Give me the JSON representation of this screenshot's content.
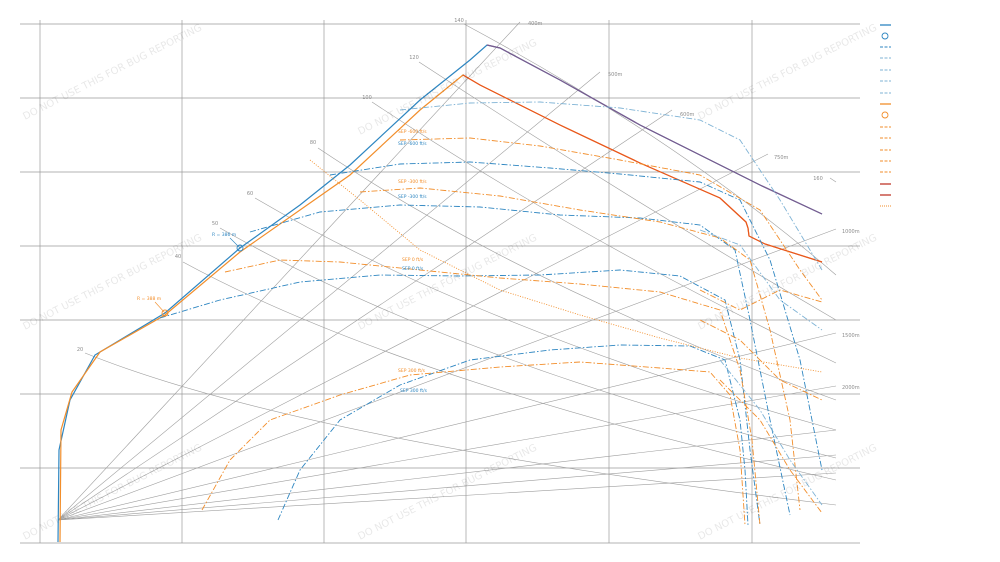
{
  "chart_data": {
    "type": "line",
    "title": "",
    "xlabel": "",
    "ylabel": "",
    "grid": true,
    "legend_position": "right",
    "watermark": "DO NOT USE THIS FOR BUG REPORTING",
    "colors": {
      "blue": "#2e86c1",
      "light_blue": "#7fb3d5",
      "orange": "#f28e2b",
      "dark_orange": "#e8561f",
      "purple": "#7d5a8c",
      "red": "#c0392b",
      "speed_lines": "#9e9e9e",
      "grid": "#9a9a9a"
    },
    "speed_labels": [
      "20",
      "40",
      "50",
      "60",
      "80",
      "100",
      "120",
      "140",
      "160"
    ],
    "range_labels": [
      "400m",
      "500m",
      "600m",
      "750m",
      "1000m",
      "1500m",
      "2000m"
    ],
    "markers": [
      {
        "label": "R = 386 m",
        "color": "#2e86c1"
      },
      {
        "label": "R = 388 m",
        "color": "#f28e2b"
      }
    ],
    "sep_labels": [
      {
        "text": "SEP -600 ft/s",
        "color": "#f28e2b"
      },
      {
        "text": "SEP -600 ft/s",
        "color": "#2e86c1"
      },
      {
        "text": "SEP -300 ft/s",
        "color": "#f28e2b"
      },
      {
        "text": "SEP -300 ft/s",
        "color": "#2e86c1"
      },
      {
        "text": "SEP 0 ft/s",
        "color": "#f28e2b"
      },
      {
        "text": "SEP 0 ft/s",
        "color": "#2e86c1"
      },
      {
        "text": "SEP 300 ft/s",
        "color": "#f28e2b"
      },
      {
        "text": "SEP 300 ft/s",
        "color": "#2e86c1"
      }
    ],
    "series": [
      {
        "color": "#2e86c1",
        "style": "solid",
        "points": [
          [
            58,
            542
          ],
          [
            59,
            450
          ],
          [
            70,
            400
          ],
          [
            95,
            355
          ],
          [
            165,
            313
          ],
          [
            240,
            248
          ],
          [
            300,
            205
          ],
          [
            350,
            165
          ],
          [
            420,
            100
          ],
          [
            470,
            60
          ],
          [
            487,
            45
          ],
          [
            500,
            48
          ],
          [
            560,
            80
          ],
          [
            640,
            125
          ],
          [
            700,
            155
          ],
          [
            760,
            185
          ],
          [
            822,
            214
          ]
        ]
      },
      {
        "color": "#7d5a8c",
        "style": "solid",
        "points": [
          [
            487,
            45
          ],
          [
            500,
            48
          ],
          [
            560,
            80
          ],
          [
            640,
            125
          ],
          [
            700,
            155
          ],
          [
            760,
            185
          ],
          [
            822,
            214
          ]
        ]
      },
      {
        "color": "#f28e2b",
        "style": "solid",
        "points": [
          [
            60,
            542
          ],
          [
            61,
            430
          ],
          [
            72,
            392
          ],
          [
            100,
            352
          ],
          [
            165,
            315
          ],
          [
            240,
            252
          ],
          [
            300,
            210
          ],
          [
            350,
            175
          ],
          [
            420,
            110
          ],
          [
            463,
            75
          ],
          [
            480,
            85
          ],
          [
            560,
            125
          ],
          [
            640,
            163
          ],
          [
            720,
            198
          ],
          [
            746,
            222
          ],
          [
            748,
            228
          ],
          [
            749,
            236
          ],
          [
            765,
            244
          ],
          [
            822,
            262
          ]
        ]
      },
      {
        "color": "#e8561f",
        "style": "solid",
        "points": [
          [
            463,
            75
          ],
          [
            480,
            85
          ],
          [
            560,
            125
          ],
          [
            640,
            163
          ],
          [
            720,
            198
          ],
          [
            746,
            222
          ],
          [
            748,
            228
          ],
          [
            749,
            236
          ],
          [
            765,
            244
          ],
          [
            822,
            262
          ]
        ]
      },
      {
        "color": "#2e86c1",
        "style": "dashdot",
        "points": [
          [
            278,
            520
          ],
          [
            300,
            470
          ],
          [
            340,
            420
          ],
          [
            400,
            385
          ],
          [
            470,
            360
          ],
          [
            550,
            350
          ],
          [
            620,
            345
          ],
          [
            690,
            346
          ],
          [
            725,
            360
          ],
          [
            740,
            420
          ],
          [
            745,
            470
          ],
          [
            748,
            525
          ]
        ]
      },
      {
        "color": "#2e86c1",
        "style": "dashdot",
        "points": [
          [
            160,
            318
          ],
          [
            220,
            300
          ],
          [
            300,
            282
          ],
          [
            380,
            275
          ],
          [
            460,
            276
          ],
          [
            540,
            275
          ],
          [
            620,
            270
          ],
          [
            680,
            276
          ],
          [
            725,
            300
          ],
          [
            740,
            360
          ],
          [
            750,
            450
          ],
          [
            760,
            525
          ]
        ]
      },
      {
        "color": "#2e86c1",
        "style": "dashdot",
        "points": [
          [
            250,
            232
          ],
          [
            320,
            212
          ],
          [
            400,
            205
          ],
          [
            480,
            207
          ],
          [
            560,
            215
          ],
          [
            640,
            218
          ],
          [
            700,
            225
          ],
          [
            735,
            250
          ],
          [
            750,
            320
          ],
          [
            770,
            420
          ],
          [
            790,
            515
          ]
        ]
      },
      {
        "color": "#2e86c1",
        "style": "dashdot",
        "points": [
          [
            330,
            175
          ],
          [
            400,
            164
          ],
          [
            470,
            162
          ],
          [
            550,
            168
          ],
          [
            620,
            174
          ],
          [
            700,
            182
          ],
          [
            740,
            200
          ],
          [
            770,
            260
          ],
          [
            800,
            360
          ],
          [
            822,
            470
          ]
        ]
      },
      {
        "color": "#7fb3d5",
        "style": "dashdot",
        "points": [
          [
            400,
            110
          ],
          [
            470,
            103
          ],
          [
            540,
            102
          ],
          [
            620,
            108
          ],
          [
            700,
            120
          ],
          [
            740,
            140
          ],
          [
            780,
            200
          ],
          [
            810,
            250
          ],
          [
            822,
            270
          ]
        ]
      },
      {
        "color": "#f28e2b",
        "style": "dashdot",
        "points": [
          [
            202,
            510
          ],
          [
            230,
            460
          ],
          [
            270,
            420
          ],
          [
            340,
            395
          ],
          [
            410,
            375
          ],
          [
            500,
            367
          ],
          [
            580,
            362
          ],
          [
            660,
            368
          ],
          [
            710,
            372
          ],
          [
            730,
            395
          ],
          [
            740,
            450
          ],
          [
            745,
            525
          ]
        ]
      },
      {
        "color": "#f28e2b",
        "style": "dashdot",
        "points": [
          [
            225,
            272
          ],
          [
            280,
            260
          ],
          [
            340,
            262
          ],
          [
            420,
            270
          ],
          [
            500,
            278
          ],
          [
            580,
            284
          ],
          [
            660,
            292
          ],
          [
            720,
            310
          ],
          [
            740,
            370
          ],
          [
            752,
            440
          ],
          [
            760,
            525
          ]
        ]
      },
      {
        "color": "#f28e2b",
        "style": "dashdot",
        "points": [
          [
            360,
            192
          ],
          [
            420,
            188
          ],
          [
            500,
            196
          ],
          [
            580,
            210
          ],
          [
            660,
            222
          ],
          [
            720,
            238
          ],
          [
            750,
            260
          ],
          [
            770,
            330
          ],
          [
            790,
            420
          ],
          [
            800,
            510
          ]
        ]
      },
      {
        "color": "#f28e2b",
        "style": "dashdot",
        "points": [
          [
            400,
            140
          ],
          [
            470,
            138
          ],
          [
            540,
            146
          ],
          [
            620,
            160
          ],
          [
            700,
            175
          ],
          [
            760,
            210
          ],
          [
            800,
            270
          ],
          [
            822,
            300
          ]
        ]
      },
      {
        "color": "#f28e2b",
        "style": "dotted",
        "points": [
          [
            310,
            160
          ],
          [
            360,
            200
          ],
          [
            420,
            250
          ],
          [
            500,
            290
          ],
          [
            580,
            315
          ],
          [
            660,
            338
          ],
          [
            740,
            358
          ],
          [
            822,
            372
          ]
        ]
      },
      {
        "color": "#f28e2b",
        "style": "dashdot",
        "points": [
          [
            700,
            290
          ],
          [
            740,
            310
          ],
          [
            780,
            290
          ],
          [
            822,
            302
          ]
        ]
      },
      {
        "color": "#f28e2b",
        "style": "dashdot",
        "points": [
          [
            700,
            320
          ],
          [
            740,
            340
          ],
          [
            780,
            380
          ],
          [
            822,
            400
          ]
        ]
      },
      {
        "color": "#f28e2b",
        "style": "dashdot",
        "points": [
          [
            720,
            380
          ],
          [
            760,
            420
          ],
          [
            790,
            470
          ],
          [
            822,
            513
          ]
        ]
      },
      {
        "color": "#7fb3d5",
        "style": "dashdot",
        "points": [
          [
            700,
            230
          ],
          [
            740,
            245
          ],
          [
            780,
            300
          ],
          [
            822,
            330
          ]
        ]
      },
      {
        "color": "#7fb3d5",
        "style": "dashdot",
        "points": [
          [
            720,
            360
          ],
          [
            760,
            410
          ],
          [
            790,
            460
          ],
          [
            822,
            505
          ]
        ]
      }
    ]
  }
}
